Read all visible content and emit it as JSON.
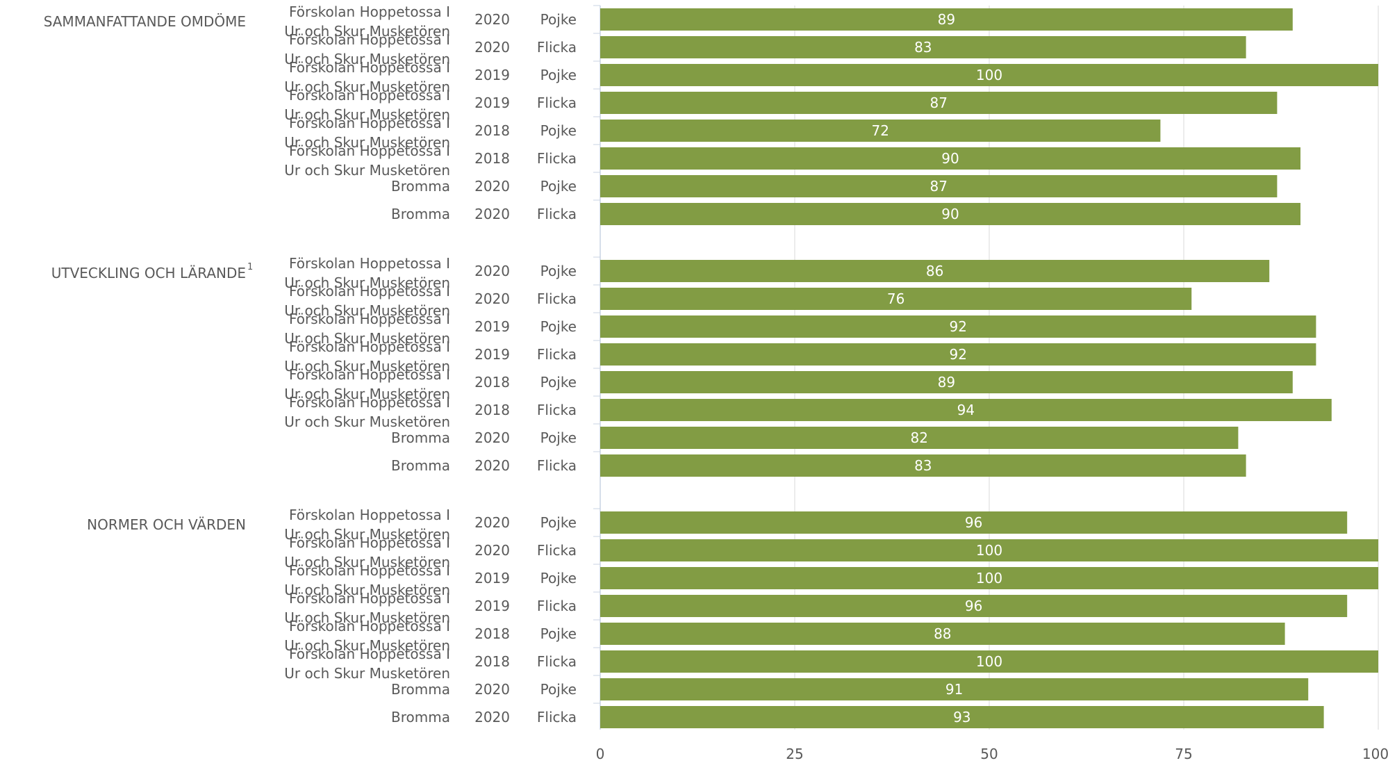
{
  "chart_data": {
    "type": "bar",
    "orientation": "horizontal",
    "xlim": [
      0,
      100
    ],
    "x_ticks": [
      "0",
      "25",
      "50",
      "75",
      "100"
    ],
    "grid": true,
    "colors": {
      "bar": "#829c44",
      "grid": "#d9d9d9",
      "text": "#595959",
      "bar_text": "#ffffff"
    },
    "groups": [
      {
        "label": "SAMMANFATTANDE OMDÖME",
        "superscript": "",
        "rows": [
          {
            "unit": "Förskolan Hoppetossa I Ur och Skur Musketören",
            "year": "2020",
            "gender": "Pojke",
            "value": 89
          },
          {
            "unit": "Förskolan Hoppetossa I Ur och Skur Musketören",
            "year": "2020",
            "gender": "Flicka",
            "value": 83
          },
          {
            "unit": "Förskolan Hoppetossa I Ur och Skur Musketören",
            "year": "2019",
            "gender": "Pojke",
            "value": 100
          },
          {
            "unit": "Förskolan Hoppetossa I Ur och Skur Musketören",
            "year": "2019",
            "gender": "Flicka",
            "value": 87
          },
          {
            "unit": "Förskolan Hoppetossa I Ur och Skur Musketören",
            "year": "2018",
            "gender": "Pojke",
            "value": 72
          },
          {
            "unit": "Förskolan Hoppetossa I Ur och Skur Musketören",
            "year": "2018",
            "gender": "Flicka",
            "value": 90
          },
          {
            "unit": "Bromma",
            "year": "2020",
            "gender": "Pojke",
            "value": 87
          },
          {
            "unit": "Bromma",
            "year": "2020",
            "gender": "Flicka",
            "value": 90
          }
        ]
      },
      {
        "label": "UTVECKLING OCH LÄRANDE",
        "superscript": "1",
        "rows": [
          {
            "unit": "Förskolan Hoppetossa I Ur och Skur Musketören",
            "year": "2020",
            "gender": "Pojke",
            "value": 86
          },
          {
            "unit": "Förskolan Hoppetossa I Ur och Skur Musketören",
            "year": "2020",
            "gender": "Flicka",
            "value": 76
          },
          {
            "unit": "Förskolan Hoppetossa I Ur och Skur Musketören",
            "year": "2019",
            "gender": "Pojke",
            "value": 92
          },
          {
            "unit": "Förskolan Hoppetossa I Ur och Skur Musketören",
            "year": "2019",
            "gender": "Flicka",
            "value": 92
          },
          {
            "unit": "Förskolan Hoppetossa I Ur och Skur Musketören",
            "year": "2018",
            "gender": "Pojke",
            "value": 89
          },
          {
            "unit": "Förskolan Hoppetossa I Ur och Skur Musketören",
            "year": "2018",
            "gender": "Flicka",
            "value": 94
          },
          {
            "unit": "Bromma",
            "year": "2020",
            "gender": "Pojke",
            "value": 82
          },
          {
            "unit": "Bromma",
            "year": "2020",
            "gender": "Flicka",
            "value": 83
          }
        ]
      },
      {
        "label": "NORMER OCH VÄRDEN",
        "superscript": "",
        "rows": [
          {
            "unit": "Förskolan Hoppetossa I Ur och Skur Musketören",
            "year": "2020",
            "gender": "Pojke",
            "value": 96
          },
          {
            "unit": "Förskolan Hoppetossa I Ur och Skur Musketören",
            "year": "2020",
            "gender": "Flicka",
            "value": 100
          },
          {
            "unit": "Förskolan Hoppetossa I Ur och Skur Musketören",
            "year": "2019",
            "gender": "Pojke",
            "value": 100
          },
          {
            "unit": "Förskolan Hoppetossa I Ur och Skur Musketören",
            "year": "2019",
            "gender": "Flicka",
            "value": 96
          },
          {
            "unit": "Förskolan Hoppetossa I Ur och Skur Musketören",
            "year": "2018",
            "gender": "Pojke",
            "value": 88
          },
          {
            "unit": "Förskolan Hoppetossa I Ur och Skur Musketören",
            "year": "2018",
            "gender": "Flicka",
            "value": 100
          },
          {
            "unit": "Bromma",
            "year": "2020",
            "gender": "Pojke",
            "value": 91
          },
          {
            "unit": "Bromma",
            "year": "2020",
            "gender": "Flicka",
            "value": 93
          }
        ]
      }
    ]
  }
}
